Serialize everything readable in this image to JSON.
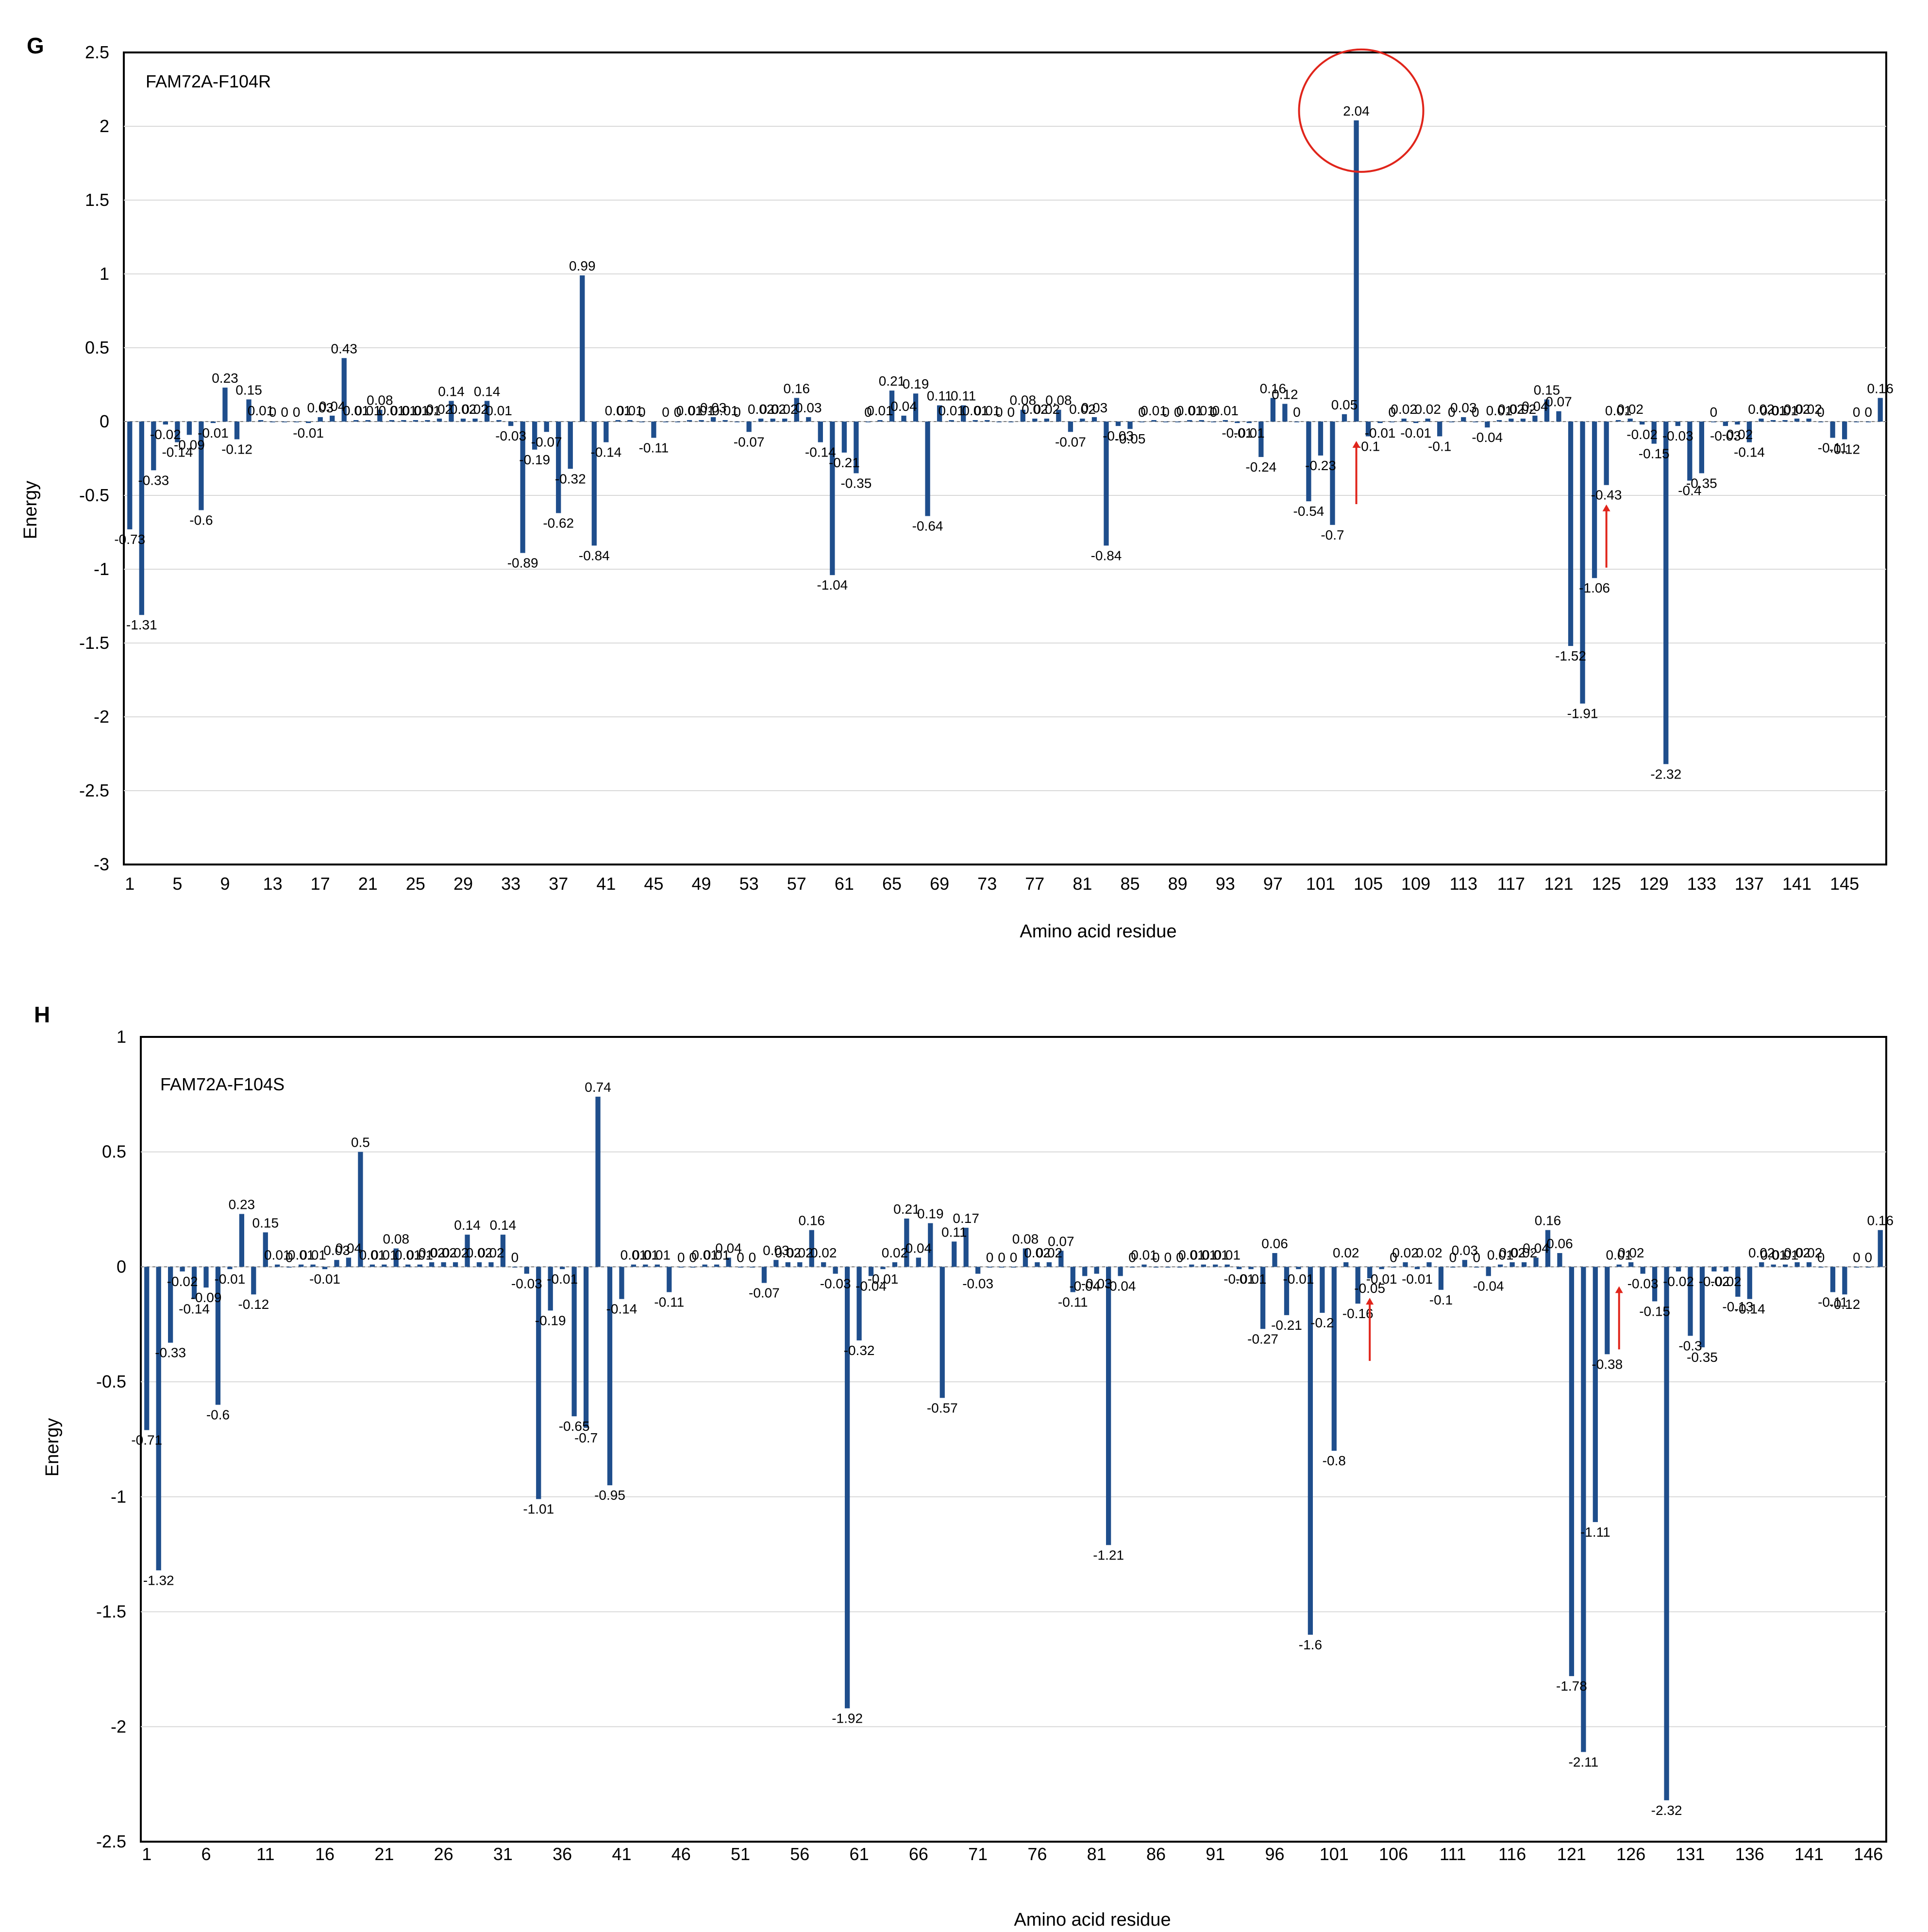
{
  "chart_data": [
    {
      "type": "bar",
      "panel": "G",
      "series_label": "FAM72A-F104R",
      "xlabel": "Amino acid residue",
      "ylabel": "Energy",
      "ylim": [
        -3,
        2.5
      ],
      "yticks": [
        2.5,
        2,
        1.5,
        1,
        0.5,
        0,
        -0.5,
        -1,
        -1.5,
        -2,
        -2.5,
        -3
      ],
      "x_start": 1,
      "x_tick_step": 4,
      "grid": true,
      "values": [
        -0.73,
        -1.31,
        -0.33,
        -0.02,
        -0.14,
        -0.09,
        -0.6,
        -0.01,
        0.23,
        -0.12,
        0.15,
        0.01,
        0,
        0,
        0,
        -0.01,
        0.03,
        0.04,
        0.43,
        0.01,
        0.01,
        0.08,
        0.01,
        0.01,
        0.01,
        0.01,
        0.02,
        0.14,
        0.02,
        0.02,
        0.14,
        0.01,
        -0.03,
        -0.89,
        -0.19,
        -0.07,
        -0.62,
        -0.32,
        0.99,
        -0.84,
        -0.14,
        0.01,
        0.01,
        0,
        -0.11,
        0,
        0,
        0.01,
        0.01,
        0.03,
        0.01,
        0,
        -0.07,
        0.02,
        0.02,
        0.02,
        0.16,
        0.03,
        -0.14,
        -1.04,
        -0.21,
        -0.35,
        0,
        0.01,
        0.21,
        0.04,
        0.19,
        -0.64,
        0.11,
        0.01,
        0.11,
        0.01,
        0.01,
        0,
        0,
        0.08,
        0.02,
        0.02,
        0.08,
        -0.07,
        0.02,
        0.03,
        -0.84,
        -0.03,
        -0.05,
        0,
        0.01,
        0,
        0,
        0.01,
        0.01,
        0,
        0.01,
        -0.01,
        -0.01,
        -0.24,
        0.16,
        0.12,
        0,
        -0.54,
        -0.23,
        -0.7,
        0.05,
        2.04,
        -0.1,
        -0.01,
        0,
        0.02,
        -0.01,
        0.02,
        -0.1,
        0,
        0.03,
        0,
        -0.04,
        0.01,
        0.02,
        0.02,
        0.04,
        0.15,
        0.07,
        -1.52,
        -1.91,
        -1.06,
        -0.43,
        0.01,
        0.02,
        -0.02,
        -0.15,
        -2.32,
        -0.03,
        -0.4,
        -0.35,
        0,
        -0.03,
        -0.02,
        -0.14,
        0.02,
        0.01,
        0.01,
        0.02,
        0.02,
        0,
        -0.11,
        -0.12,
        0,
        0,
        0.16
      ],
      "annotations": {
        "circled_value": 2.04,
        "arrows_at_residue": [
          104,
          125
        ]
      }
    },
    {
      "type": "bar",
      "panel": "H",
      "series_label": "FAM72A-F104S",
      "xlabel": "Amino acid residue",
      "ylabel": "Energy",
      "ylim": [
        -2.5,
        1
      ],
      "yticks": [
        1,
        0.5,
        0,
        -0.5,
        -1,
        -1.5,
        -2,
        -2.5
      ],
      "x_start": 1,
      "x_tick_step": 5,
      "grid": true,
      "values": [
        -0.71,
        -1.32,
        -0.33,
        -0.02,
        -0.14,
        -0.09,
        -0.6,
        -0.01,
        0.23,
        -0.12,
        0.15,
        0.01,
        0,
        0.01,
        0.01,
        -0.01,
        0.03,
        0.04,
        0.5,
        0.01,
        0.01,
        0.08,
        0.01,
        0.01,
        0.02,
        0.02,
        0.02,
        0.14,
        0.02,
        0.02,
        0.14,
        0,
        -0.03,
        -1.01,
        -0.19,
        -0.01,
        -0.65,
        -0.7,
        0.74,
        -0.95,
        -0.14,
        0.01,
        0.01,
        0.01,
        -0.11,
        0,
        0,
        0.01,
        0.01,
        0.04,
        0,
        0,
        -0.07,
        0.03,
        0.02,
        0.02,
        0.16,
        0.02,
        -0.03,
        -1.92,
        -0.32,
        -0.04,
        -0.01,
        0.02,
        0.21,
        0.04,
        0.19,
        -0.57,
        0.11,
        0.17,
        -0.03,
        0,
        0,
        0,
        0.08,
        0.02,
        0.02,
        0.07,
        -0.11,
        -0.04,
        -0.03,
        -1.21,
        -0.04,
        0,
        0.01,
        0,
        0,
        0,
        0.01,
        0.01,
        0.01,
        0.01,
        -0.01,
        -0.01,
        -0.27,
        0.06,
        -0.21,
        -0.01,
        -1.6,
        -0.2,
        -0.8,
        0.02,
        -0.16,
        -0.05,
        -0.01,
        0,
        0.02,
        -0.01,
        0.02,
        -0.1,
        0,
        0.03,
        0,
        -0.04,
        0.01,
        0.02,
        0.02,
        0.04,
        0.16,
        0.06,
        -1.78,
        -2.11,
        -1.11,
        -0.38,
        0.01,
        0.02,
        -0.03,
        -0.15,
        -2.32,
        -0.02,
        -0.3,
        -0.35,
        -0.02,
        -0.02,
        -0.13,
        -0.14,
        0.02,
        0.01,
        0.01,
        0.02,
        0.02,
        0,
        -0.11,
        -0.12,
        0,
        0,
        0.16
      ],
      "annotations": {
        "arrows_at_residue": [
          104,
          125
        ]
      }
    }
  ],
  "colors": {
    "bar": "#1f4e8c",
    "annotation": "#e0251b",
    "grid": "#d9d9d9"
  }
}
